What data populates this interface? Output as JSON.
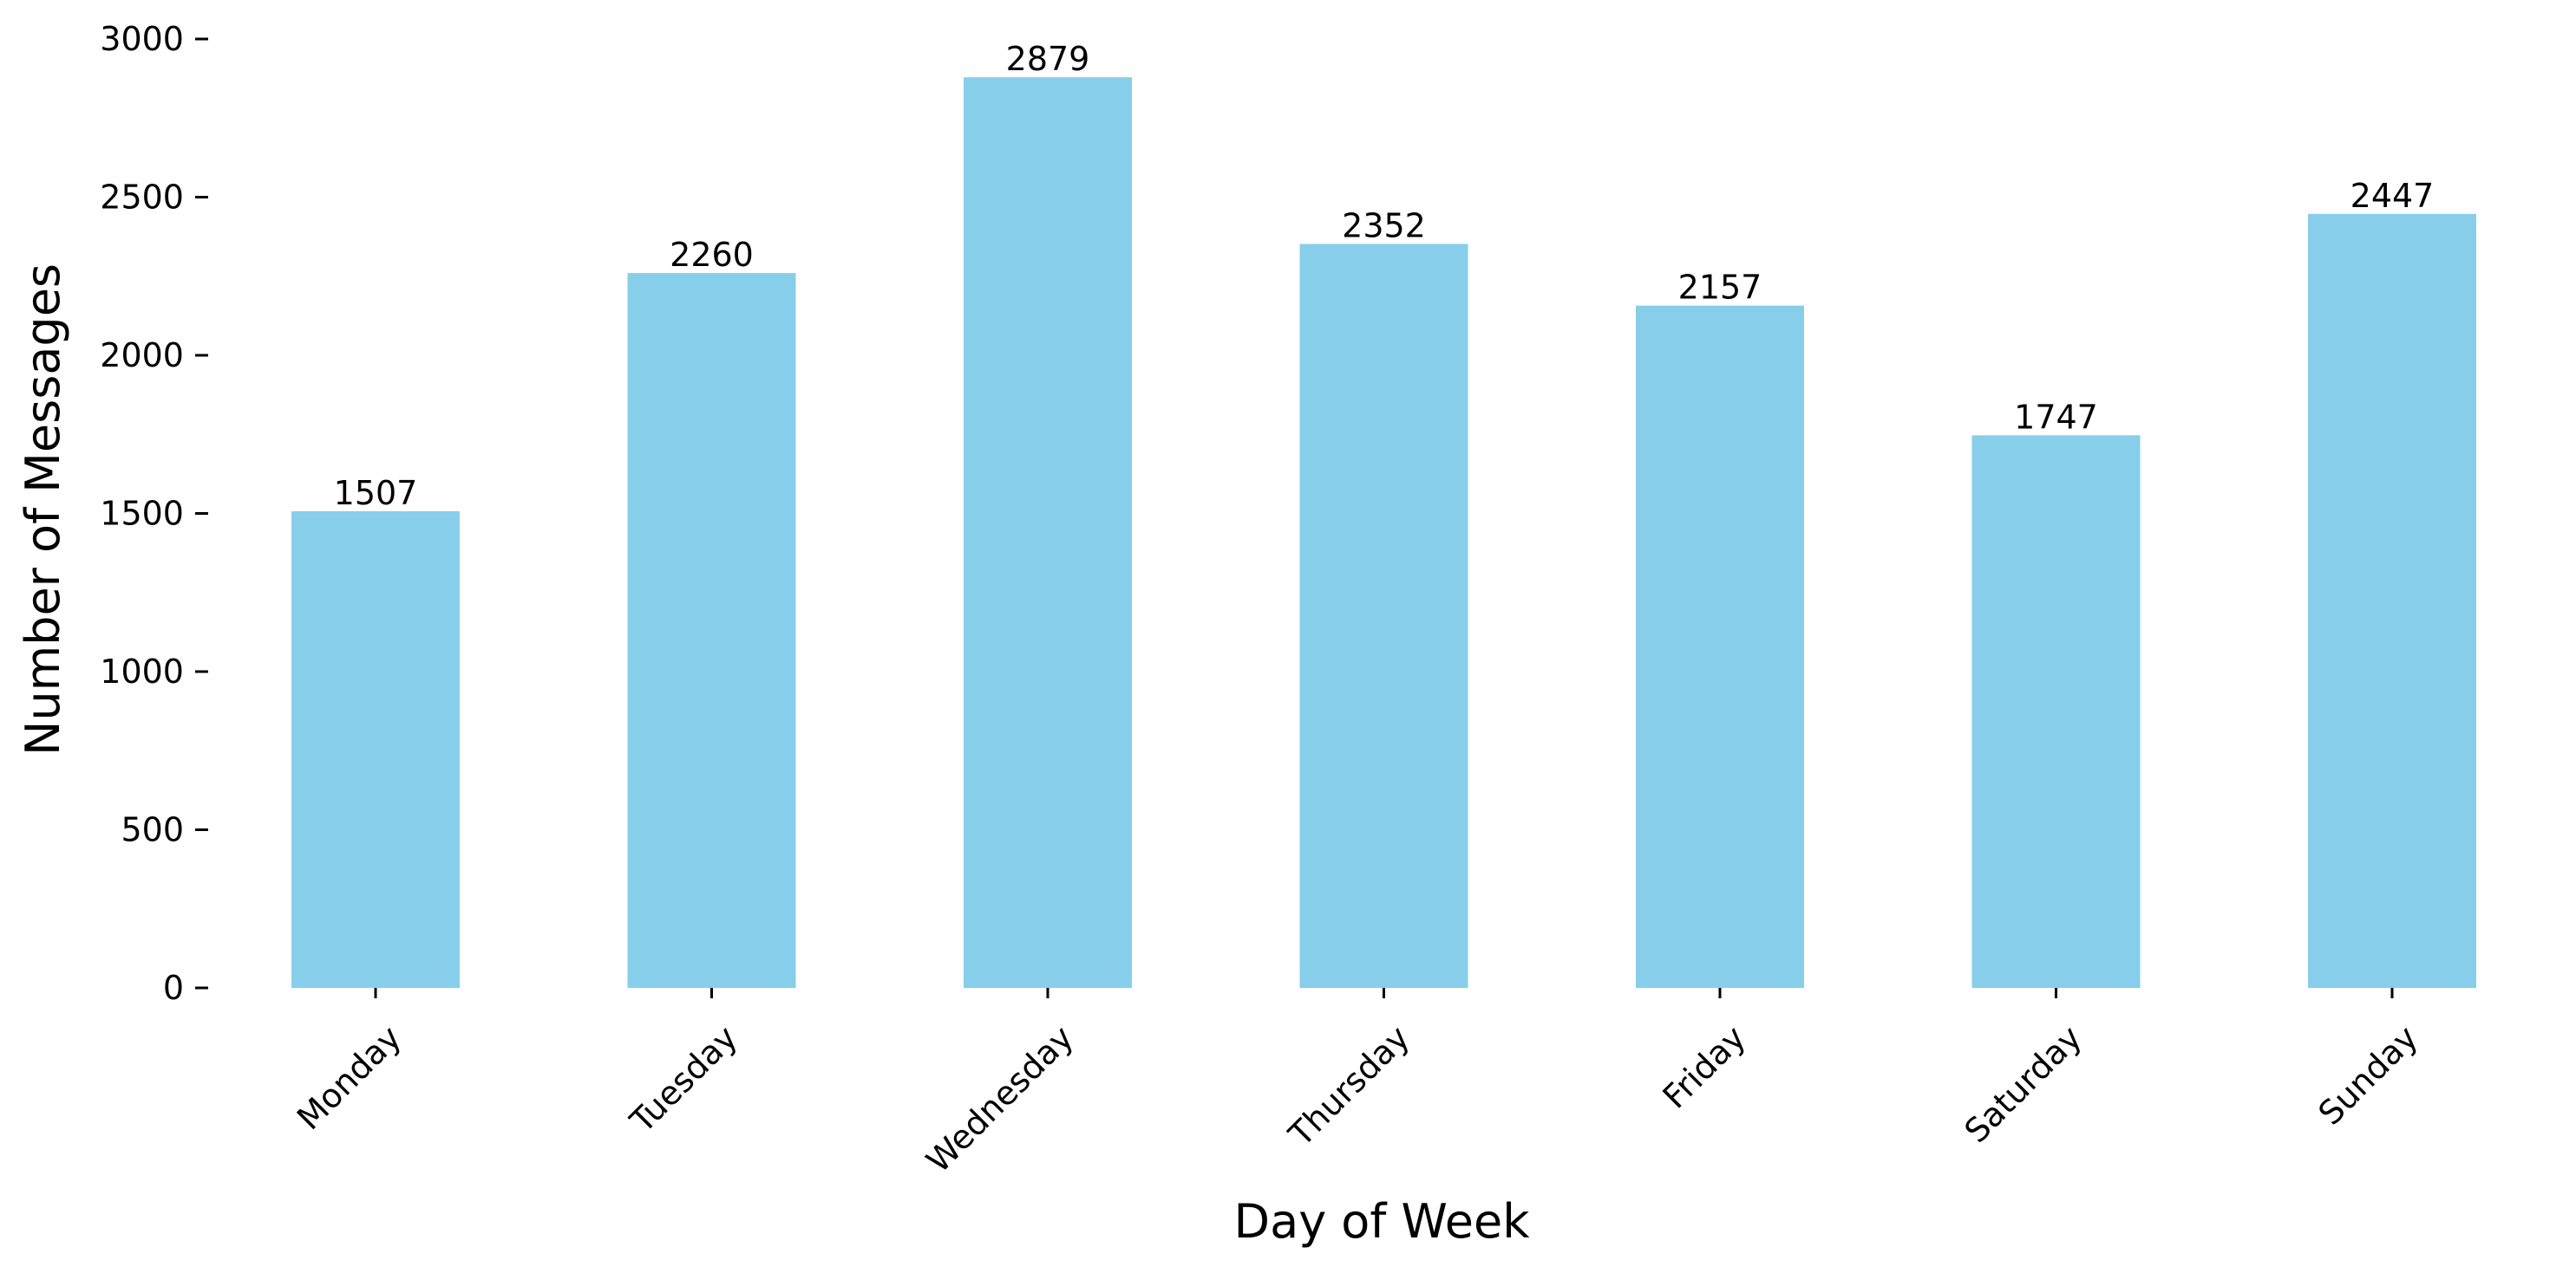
{
  "chart_data": {
    "type": "bar",
    "categories": [
      "Monday",
      "Tuesday",
      "Wednesday",
      "Thursday",
      "Friday",
      "Saturday",
      "Sunday"
    ],
    "values": [
      1507,
      2260,
      2879,
      2352,
      2157,
      1747,
      2447
    ],
    "xlabel": "Day of Week",
    "ylabel": "Number of Messages",
    "ylim": [
      0,
      3000
    ],
    "yticks": [
      0,
      500,
      1000,
      1500,
      2000,
      2500,
      3000
    ],
    "grid": false,
    "bar_color": "#87ceeb"
  }
}
